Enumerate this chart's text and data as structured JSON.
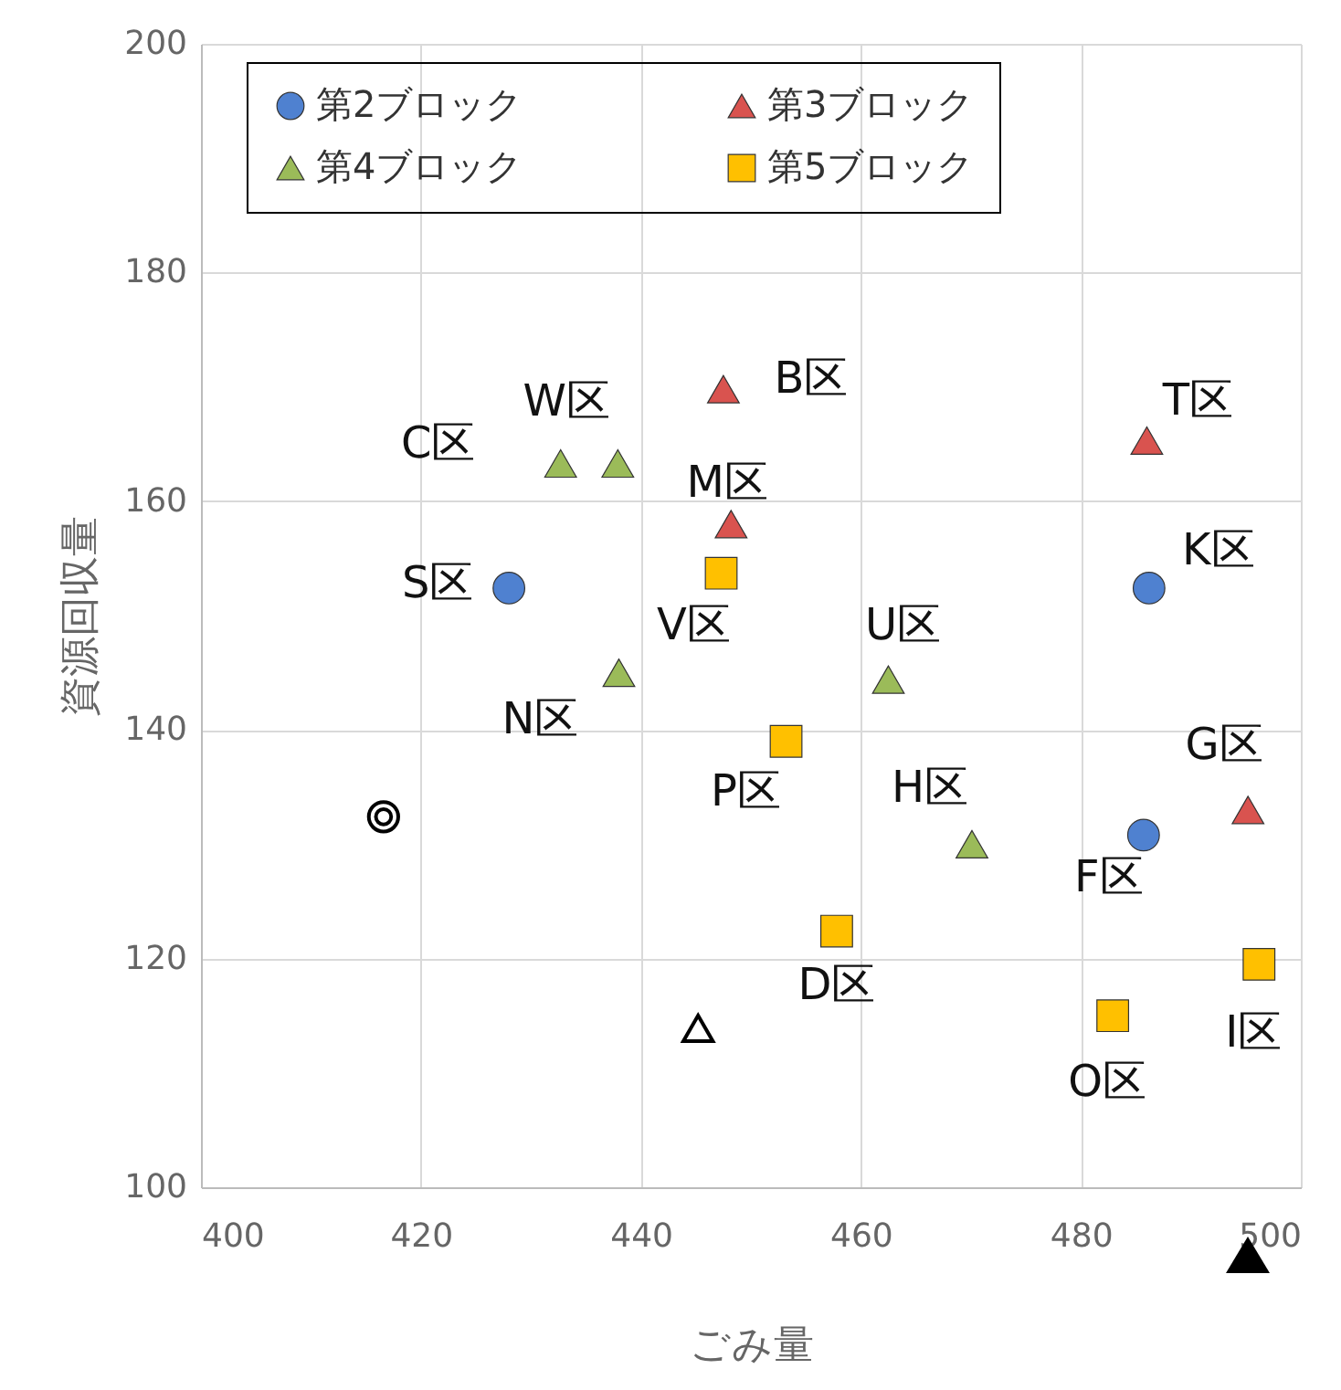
{
  "chart_data": {
    "type": "scatter",
    "xlabel": "ごみ量",
    "ylabel": "資源回収量",
    "xlim": [
      400,
      500
    ],
    "xticks": [
      400,
      420,
      440,
      460,
      480,
      500
    ],
    "ylim": [
      100,
      200
    ],
    "yticks": [
      100,
      120,
      140,
      160,
      180,
      200
    ],
    "grid": true,
    "legend": "top",
    "series": [
      {
        "name": "第2ブロック",
        "color": "#4f81d0",
        "marker": "circle",
        "x": [
          428,
          486.2,
          485.7
        ],
        "values": [
          152.4,
          152.4,
          130.8
        ]
      },
      {
        "name": "第3ブロック",
        "color": "#d9534f",
        "marker": "triangle",
        "x": [
          447.5,
          448.2,
          486,
          495.2
        ],
        "values": [
          169.8,
          158,
          165.3,
          133
        ]
      },
      {
        "name": "第4ブロック",
        "color": "#9bbb59",
        "marker": "triangle",
        "x": [
          432.7,
          437.9,
          438,
          462.5,
          470.1
        ],
        "values": [
          163.3,
          163.3,
          145,
          144.4,
          130
        ]
      },
      {
        "name": "第5ブロック",
        "color": "#ffc000",
        "marker": "square",
        "x": [
          447.3,
          453.2,
          457.8,
          482.9,
          496.2
        ],
        "values": [
          153.7,
          139,
          122.4,
          115,
          119.5
        ]
      },
      {
        "color": "#000000",
        "marker": "circle",
        "x": [
          416.6
        ],
        "values": [
          132.4
        ]
      },
      {
        "color": "#000000",
        "marker": "triangle",
        "x": [
          445.2
        ],
        "values": [
          113.9
        ]
      }
    ],
    "annotations": [
      {
        "text": "W区",
        "x": 437.9,
        "y": 163.3
      },
      {
        "text": "B区",
        "x": 447.5,
        "y": 169.8
      },
      {
        "text": "C区",
        "x": 432.7,
        "y": 163.3
      },
      {
        "text": "T区",
        "x": 486,
        "y": 165.3
      },
      {
        "text": "M区",
        "x": 448.2,
        "y": 158
      },
      {
        "text": "S区",
        "x": 428,
        "y": 152.4
      },
      {
        "text": "K区",
        "x": 486.2,
        "y": 152.4
      },
      {
        "text": "V区",
        "x": 447.3,
        "y": 153.7
      },
      {
        "text": "U区",
        "x": 462.5,
        "y": 144.4
      },
      {
        "text": "N区",
        "x": 438,
        "y": 145
      },
      {
        "text": "G区",
        "x": 495.2,
        "y": 133
      },
      {
        "text": "P区",
        "x": 453.2,
        "y": 139
      },
      {
        "text": "H区",
        "x": 470.1,
        "y": 130
      },
      {
        "text": "F区",
        "x": 485.7,
        "y": 130.8
      },
      {
        "text": "D区",
        "x": 457.8,
        "y": 122.4
      },
      {
        "text": "I区",
        "x": 496.2,
        "y": 119.5
      },
      {
        "text": "O区",
        "x": 482.9,
        "y": 115
      }
    ]
  }
}
